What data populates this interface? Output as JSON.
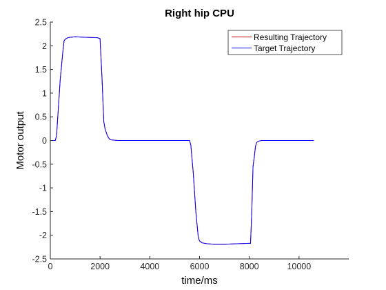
{
  "chart_data": {
    "type": "line",
    "title": "Right hip CPU",
    "xlabel": "time/ms",
    "ylabel": "Motor output",
    "xlim": [
      0,
      12000
    ],
    "ylim": [
      -2.5,
      2.5
    ],
    "xticks": [
      0,
      2000,
      4000,
      6000,
      8000,
      10000
    ],
    "xtick_labels": [
      "0",
      "2000",
      "4000",
      "6000",
      "8000",
      "10000"
    ],
    "yticks": [
      2.5,
      2,
      1.5,
      1,
      0.5,
      0,
      -0.5,
      -1,
      -1.5,
      -2,
      -2.5
    ],
    "ytick_labels": [
      "2.5",
      "2",
      "1.5",
      "1",
      "0.5",
      "0",
      "-0.5",
      "-1",
      "-1.5",
      "-2",
      "-2.5"
    ],
    "grid": false,
    "legend_position": "top-right",
    "series": [
      {
        "name": "Resulting Trajectory",
        "color": "#cc0000",
        "x": [
          0,
          200,
          250,
          300,
          400,
          500,
          550,
          600,
          700,
          800,
          1000,
          1400,
          1900,
          2000,
          2080,
          2150,
          2200,
          2280,
          2350,
          2400,
          2500,
          2700,
          3000,
          4000,
          5000,
          5500,
          5600,
          5650,
          5750,
          5850,
          5950,
          6000,
          6100,
          6300,
          6600,
          7000,
          7500,
          8000,
          8050,
          8100,
          8150,
          8200,
          8250,
          8300,
          8350,
          8400,
          8500,
          8700,
          9000,
          10000,
          10600
        ],
        "y": [
          0,
          0,
          0.1,
          0.5,
          1.3,
          1.85,
          2.1,
          2.14,
          2.17,
          2.18,
          2.19,
          2.18,
          2.17,
          2.15,
          1.3,
          0.4,
          0.25,
          0.12,
          0.05,
          0.02,
          0.01,
          0.0,
          0.0,
          0.0,
          0.0,
          0.0,
          0.0,
          -0.1,
          -0.7,
          -1.5,
          -2.05,
          -2.12,
          -2.16,
          -2.18,
          -2.19,
          -2.19,
          -2.18,
          -2.17,
          -2.17,
          -1.5,
          -0.55,
          -0.35,
          -0.12,
          -0.04,
          -0.02,
          -0.01,
          0.0,
          0.0,
          0.0,
          0.0,
          0.0
        ]
      },
      {
        "name": "Target Trajectory",
        "color": "#0000ff",
        "x": [
          0,
          200,
          250,
          300,
          400,
          500,
          550,
          600,
          700,
          800,
          1000,
          1400,
          1900,
          2000,
          2080,
          2150,
          2200,
          2280,
          2350,
          2400,
          2500,
          2700,
          3000,
          4000,
          5000,
          5500,
          5600,
          5650,
          5750,
          5850,
          5950,
          6000,
          6100,
          6300,
          6600,
          7000,
          7500,
          8000,
          8050,
          8100,
          8150,
          8200,
          8250,
          8300,
          8350,
          8400,
          8500,
          8700,
          9000,
          10000,
          10600
        ],
        "y": [
          0,
          0,
          0.1,
          0.5,
          1.3,
          1.85,
          2.1,
          2.14,
          2.17,
          2.18,
          2.19,
          2.18,
          2.17,
          2.15,
          1.3,
          0.4,
          0.25,
          0.12,
          0.05,
          0.02,
          0.01,
          0.0,
          0.0,
          0.0,
          0.0,
          0.0,
          0.0,
          -0.1,
          -0.7,
          -1.5,
          -2.05,
          -2.12,
          -2.16,
          -2.18,
          -2.19,
          -2.19,
          -2.18,
          -2.17,
          -2.17,
          -1.5,
          -0.55,
          -0.35,
          -0.12,
          -0.04,
          -0.02,
          -0.01,
          0.0,
          0.0,
          0.0,
          0.0,
          0.0
        ]
      }
    ]
  }
}
